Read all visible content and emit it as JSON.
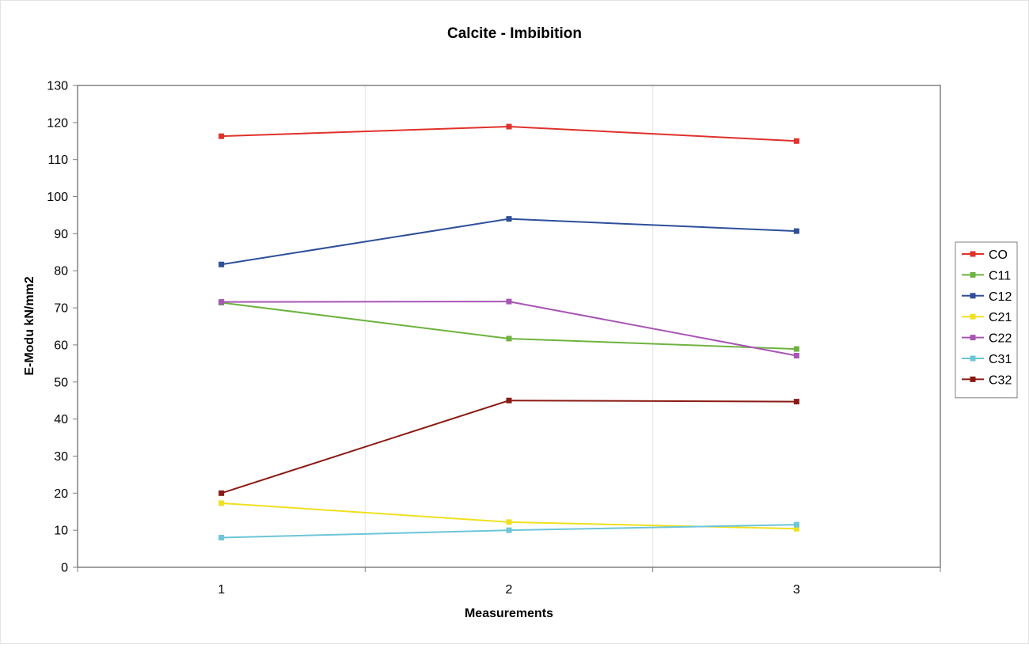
{
  "chart_data": {
    "type": "line",
    "title": "Calcite - Imbibition",
    "xlabel": "Measurements",
    "ylabel": "E-Modu kN/mm2",
    "categories": [
      "1",
      "2",
      "3"
    ],
    "ylim": [
      0,
      130
    ],
    "yticks": [
      0,
      10,
      20,
      30,
      40,
      50,
      60,
      70,
      80,
      90,
      100,
      110,
      120,
      130
    ],
    "grid": "vertical",
    "legend": "right",
    "series": [
      {
        "name": "CO",
        "color": "#e0312b",
        "values": [
          116.3,
          118.9,
          115.0
        ]
      },
      {
        "name": "C11",
        "color": "#6db33f",
        "values": [
          71.4,
          61.7,
          58.9
        ]
      },
      {
        "name": "C12",
        "color": "#2e4f9a",
        "values": [
          81.7,
          94.0,
          90.7
        ]
      },
      {
        "name": "C21",
        "color": "#f0e020",
        "values": [
          17.3,
          12.2,
          10.4
        ]
      },
      {
        "name": "C22",
        "color": "#a855b5",
        "values": [
          71.6,
          71.7,
          57.1
        ]
      },
      {
        "name": "C31",
        "color": "#6cc5d9",
        "values": [
          8.0,
          10.0,
          11.5
        ]
      },
      {
        "name": "C32",
        "color": "#8b1a14",
        "values": [
          20.0,
          45.0,
          44.7
        ]
      }
    ]
  }
}
